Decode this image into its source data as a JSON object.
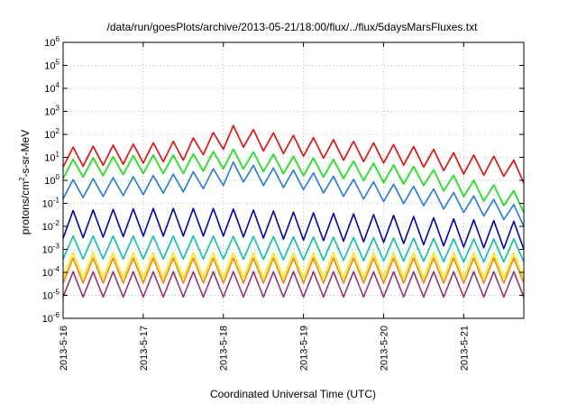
{
  "chart_data": {
    "type": "line",
    "title": "/data/run/goesPlots/archive/2013-05-21/18:00/flux/../flux/5daysMarsFluxes.txt",
    "xlabel": "Coordinated Universal Time (UTC)",
    "ylabel": {
      "base": "protons/cm",
      "exponent": "2",
      "suffix": "-s-sr-MeV"
    },
    "y_scale": "log",
    "ylim": [
      1e-06,
      1000000.0
    ],
    "y_ticks": [
      {
        "value": 1e-06,
        "base": "10",
        "exp": "-6"
      },
      {
        "value": 1e-05,
        "base": "10",
        "exp": "-5"
      },
      {
        "value": 0.0001,
        "base": "10",
        "exp": "-4"
      },
      {
        "value": 0.001,
        "base": "10",
        "exp": "-3"
      },
      {
        "value": 0.01,
        "base": "10",
        "exp": "-2"
      },
      {
        "value": 0.1,
        "base": "10",
        "exp": "-1"
      },
      {
        "value": 1,
        "base": "10",
        "exp": "0"
      },
      {
        "value": 10,
        "base": "10",
        "exp": "1"
      },
      {
        "value": 100,
        "base": "10",
        "exp": "2"
      },
      {
        "value": 1000,
        "base": "10",
        "exp": "3"
      },
      {
        "value": 10000,
        "base": "10",
        "exp": "4"
      },
      {
        "value": 100000,
        "base": "10",
        "exp": "5"
      },
      {
        "value": 1000000,
        "base": "10",
        "exp": "6"
      }
    ],
    "xlim": [
      "2013-05-16",
      "2013-05-21T18:00"
    ],
    "x_ticks": [
      {
        "value": "2013-05-16",
        "label": "2013-5-16"
      },
      {
        "value": "2013-05-17",
        "label": "2013-5-17"
      },
      {
        "value": "2013-05-18",
        "label": "2013-5-18"
      },
      {
        "value": "2013-05-19",
        "label": "2013-5-19"
      },
      {
        "value": "2013-05-20",
        "label": "2013-5-20"
      },
      {
        "value": "2013-05-21",
        "label": "2013-5-21"
      }
    ],
    "grid": true,
    "series": [
      {
        "color": "#ff0000",
        "x": [
          "2013-05-16T00:00",
          "2013-05-16T12:00",
          "2013-05-17T00:00",
          "2013-05-17T12:00",
          "2013-05-18T00:00",
          "2013-05-18T03:00",
          "2013-05-18T12:00",
          "2013-05-19T00:00",
          "2013-05-19T12:00",
          "2013-05-20T00:00",
          "2013-05-20T12:00",
          "2013-05-21T00:00",
          "2013-05-21T12:00",
          "2013-05-21T18:00"
        ],
        "y": [
          10,
          12,
          15,
          20,
          60,
          90,
          50,
          30,
          20,
          15,
          10,
          5,
          4,
          2
        ]
      },
      {
        "color": "#00ee00",
        "x": [
          "2013-05-16T00:00",
          "2013-05-16T12:00",
          "2013-05-17T00:00",
          "2013-05-17T12:00",
          "2013-05-18T00:00",
          "2013-05-18T03:00",
          "2013-05-18T12:00",
          "2013-05-19T00:00",
          "2013-05-19T12:00",
          "2013-05-20T00:00",
          "2013-05-20T12:00",
          "2013-05-21T00:00",
          "2013-05-21T12:00",
          "2013-05-21T18:00"
        ],
        "y": [
          3,
          4,
          5,
          5,
          8,
          9,
          6,
          4,
          3,
          2,
          1.5,
          0.5,
          0.2,
          0.1
        ]
      },
      {
        "color": "#1e78ff",
        "x": [
          "2013-05-16T00:00",
          "2013-05-16T12:00",
          "2013-05-17T00:00",
          "2013-05-17T12:00",
          "2013-05-18T00:00",
          "2013-05-18T03:00",
          "2013-05-18T12:00",
          "2013-05-19T00:00",
          "2013-05-19T12:00",
          "2013-05-20T00:00",
          "2013-05-20T12:00",
          "2013-05-21T00:00",
          "2013-05-21T12:00",
          "2013-05-21T18:00"
        ],
        "y": [
          0.4,
          0.5,
          0.6,
          0.8,
          1.5,
          2.5,
          1.5,
          1,
          0.5,
          0.3,
          0.2,
          0.1,
          0.05,
          0.025
        ]
      },
      {
        "color": "#0000cc",
        "x": [
          "2013-05-16",
          "2013-05-17",
          "2013-05-18",
          "2013-05-19",
          "2013-05-20",
          "2013-05-21",
          "2013-05-21T18:00"
        ],
        "y": [
          0.012,
          0.015,
          0.015,
          0.01,
          0.008,
          0.005,
          0.004
        ]
      },
      {
        "color": "#00c8a0",
        "x": [
          "2013-05-16",
          "2013-05-17",
          "2013-05-18",
          "2013-05-19",
          "2013-05-20",
          "2013-05-21",
          "2013-05-21T18:00"
        ],
        "y": [
          0.0012,
          0.0012,
          0.0012,
          0.0011,
          0.001,
          0.0009,
          0.0009
        ]
      },
      {
        "color": "#f0f000",
        "x": [
          "2013-05-16",
          "2013-05-17",
          "2013-05-18",
          "2013-05-19",
          "2013-05-20",
          "2013-05-21",
          "2013-05-21T18:00"
        ],
        "y": [
          0.0002,
          0.0002,
          0.0002,
          0.0002,
          0.0002,
          0.0002,
          0.0002
        ]
      },
      {
        "color": "#ff7f00",
        "x": [
          "2013-05-16",
          "2013-05-17",
          "2013-05-18",
          "2013-05-19",
          "2013-05-20",
          "2013-05-21",
          "2013-05-21T18:00"
        ],
        "y": [
          0.00012,
          0.00012,
          0.00012,
          0.00012,
          0.00012,
          0.00012,
          0.00012
        ]
      },
      {
        "color": "#a0306e",
        "x": [
          "2013-05-16",
          "2013-05-17",
          "2013-05-18",
          "2013-05-19",
          "2013-05-20",
          "2013-05-21",
          "2013-05-21T18:00"
        ],
        "y": [
          3e-05,
          3e-05,
          3e-05,
          3e-05,
          3e-05,
          3e-05,
          3e-05
        ]
      }
    ]
  }
}
